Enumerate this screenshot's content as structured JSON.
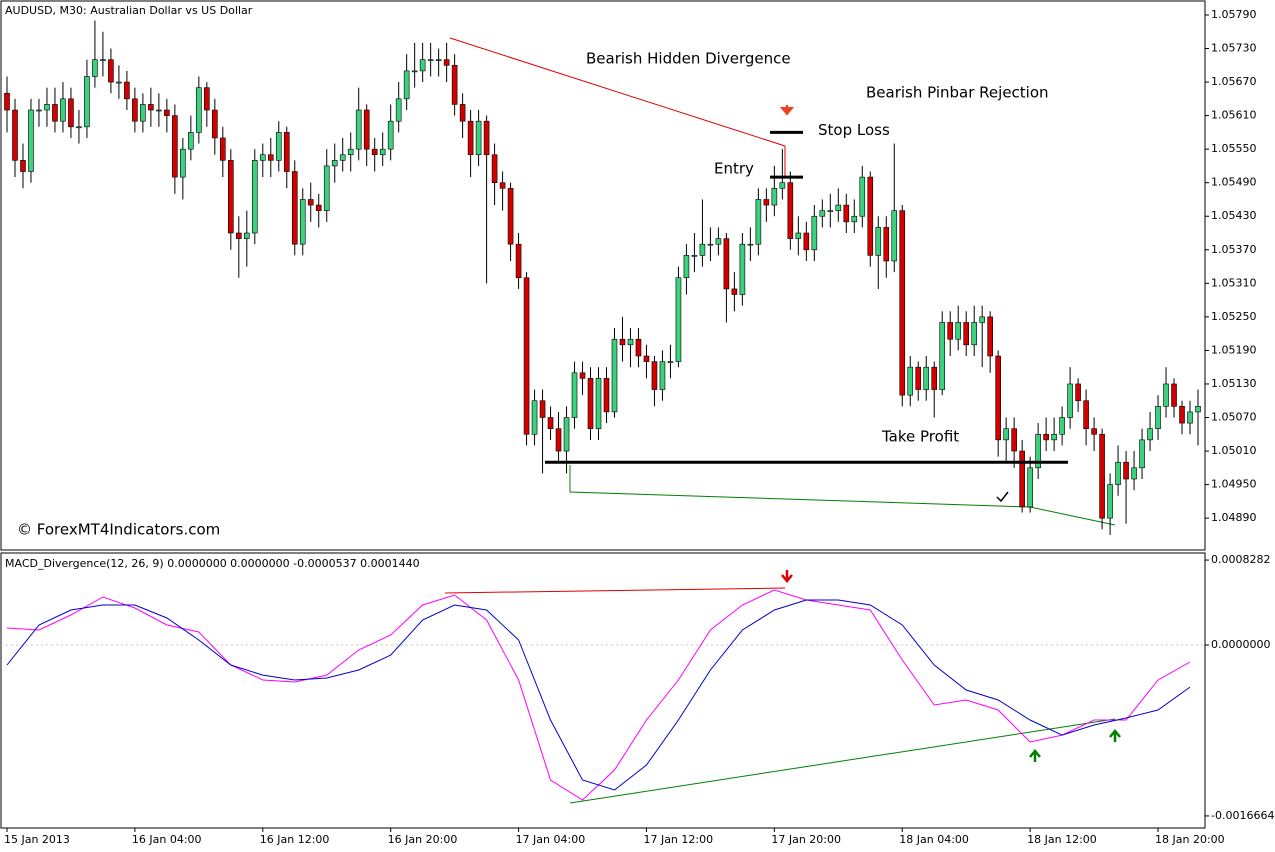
{
  "chart_data": [
    {
      "type": "candlestick",
      "title": "AUDUSD, M30:  Australian Dollar vs US Dollar",
      "up_color": "#3cd17c",
      "down_color": "#d40000",
      "open": [
        1.0565,
        1.0562,
        1.0553,
        1.0551,
        1.0562,
        1.0562,
        1.0563,
        1.056,
        1.0564,
        1.0559,
        1.0559,
        1.0568,
        1.0571,
        1.0571,
        1.0567,
        1.0567,
        1.0564,
        1.056,
        1.0563,
        1.0562,
        1.0562,
        1.0561,
        1.055,
        1.0555,
        1.0558,
        1.0566,
        1.0562,
        1.0557,
        1.0553,
        1.054,
        1.0539,
        1.054,
        1.0553,
        1.0554,
        1.0553,
        1.0558,
        1.0551,
        1.0538,
        1.0546,
        1.0545,
        1.0544,
        1.0552,
        1.0553,
        1.0554,
        1.0555,
        1.0562,
        1.0555,
        1.0554,
        1.0555,
        1.056,
        1.0564,
        1.0569,
        1.0569,
        1.0571,
        1.0571,
        1.0571,
        1.057,
        1.0563,
        1.056,
        1.0554,
        1.056,
        1.0554,
        1.0549,
        1.0548,
        1.0538,
        1.0532,
        1.0504,
        1.051,
        1.0507,
        1.0505,
        1.0501,
        1.0507,
        1.0515,
        1.0514,
        1.0505,
        1.0514,
        1.0508,
        1.0521,
        1.052,
        1.0521,
        1.0518,
        1.0517,
        1.0512,
        1.0517,
        1.0517,
        1.0532,
        1.0536,
        1.0536,
        1.0538,
        1.0538,
        1.0539,
        1.053,
        1.0529,
        1.0538,
        1.0538,
        1.0546,
        1.0545,
        1.0548,
        1.0549,
        1.0539,
        1.054,
        1.0537,
        1.0543,
        1.0544,
        1.0544,
        1.0545,
        1.0542,
        1.0543,
        1.055,
        1.0536,
        1.0541,
        1.0535,
        1.0544,
        1.0511,
        1.0516,
        1.0512,
        1.0516,
        1.0512,
        1.0524,
        1.0521,
        1.0524,
        1.052,
        1.0524,
        1.0525,
        1.0518,
        1.0503,
        1.0505,
        1.0501,
        1.0491,
        1.0498,
        1.0504,
        1.0503,
        1.0504,
        1.0507,
        1.0513,
        1.051,
        1.0505,
        1.0504,
        1.0489,
        1.0495,
        1.0499,
        1.0496,
        1.0498,
        1.0503,
        1.0505,
        1.0509,
        1.0513,
        1.0509,
        1.0506,
        1.0508
      ],
      "high": [
        1.0568,
        1.0564,
        1.0556,
        1.0564,
        1.0564,
        1.0566,
        1.0566,
        1.0567,
        1.0566,
        1.0562,
        1.0571,
        1.0578,
        1.0576,
        1.0573,
        1.057,
        1.0569,
        1.0566,
        1.0565,
        1.0566,
        1.0565,
        1.0564,
        1.0563,
        1.0557,
        1.0561,
        1.0568,
        1.0567,
        1.0564,
        1.0559,
        1.0555,
        1.0543,
        1.0544,
        1.0555,
        1.0556,
        1.0557,
        1.056,
        1.0559,
        1.0553,
        1.0548,
        1.0549,
        1.0547,
        1.0555,
        1.0556,
        1.0557,
        1.0558,
        1.0566,
        1.0563,
        1.0557,
        1.0558,
        1.0563,
        1.0567,
        1.0572,
        1.0574,
        1.0574,
        1.0574,
        1.0573,
        1.0574,
        1.0572,
        1.0565,
        1.0562,
        1.0562,
        1.0561,
        1.0556,
        1.0551,
        1.0549,
        1.054,
        1.0533,
        1.0512,
        1.0512,
        1.0509,
        1.0508,
        1.0509,
        1.0517,
        1.0517,
        1.0516,
        1.0516,
        1.0516,
        1.0523,
        1.0525,
        1.0523,
        1.0523,
        1.052,
        1.0518,
        1.0519,
        1.052,
        1.0534,
        1.0538,
        1.054,
        1.0546,
        1.0541,
        1.0541,
        1.054,
        1.0533,
        1.054,
        1.0541,
        1.0548,
        1.0548,
        1.0552,
        1.0555,
        1.0551,
        1.0543,
        1.0542,
        1.0545,
        1.0546,
        1.0547,
        1.0548,
        1.0547,
        1.0546,
        1.0552,
        1.0551,
        1.0543,
        1.0543,
        1.0556,
        1.0545,
        1.0518,
        1.0517,
        1.0518,
        1.0517,
        1.0526,
        1.0526,
        1.0527,
        1.0526,
        1.0527,
        1.0527,
        1.0526,
        1.0519,
        1.0507,
        1.0507,
        1.0503,
        1.05,
        1.0506,
        1.0507,
        1.0507,
        1.0509,
        1.0516,
        1.0514,
        1.0512,
        1.0507,
        1.0505,
        1.0497,
        1.0502,
        1.0501,
        1.0501,
        1.0505,
        1.0508,
        1.0511,
        1.0516,
        1.0514,
        1.051,
        1.051,
        1.0512
      ],
      "low": [
        1.0558,
        1.055,
        1.0548,
        1.0549,
        1.0559,
        1.0559,
        1.0558,
        1.0558,
        1.0557,
        1.0556,
        1.0557,
        1.0566,
        1.0568,
        1.0565,
        1.0564,
        1.0562,
        1.0558,
        1.0558,
        1.0559,
        1.0559,
        1.0558,
        1.0547,
        1.0546,
        1.0553,
        1.0556,
        1.0559,
        1.0554,
        1.055,
        1.0537,
        1.0532,
        1.0534,
        1.0538,
        1.055,
        1.055,
        1.0551,
        1.0548,
        1.0536,
        1.0536,
        1.0542,
        1.0541,
        1.0542,
        1.0549,
        1.0551,
        1.0551,
        1.0553,
        1.0552,
        1.0551,
        1.0552,
        1.0553,
        1.0558,
        1.0562,
        1.0566,
        1.0567,
        1.0568,
        1.0568,
        1.0567,
        1.0561,
        1.0557,
        1.055,
        1.0552,
        1.0531,
        1.0545,
        1.0544,
        1.0535,
        1.053,
        1.0502,
        1.0502,
        1.0497,
        1.0503,
        1.0499,
        1.0497,
        1.0505,
        1.0511,
        1.0503,
        1.0503,
        1.0506,
        1.0507,
        1.0517,
        1.0516,
        1.0516,
        1.0514,
        1.0509,
        1.051,
        1.0514,
        1.0516,
        1.0529,
        1.0533,
        1.0534,
        1.0535,
        1.0536,
        1.0524,
        1.0526,
        1.0527,
        1.0535,
        1.0536,
        1.0542,
        1.0543,
        1.0546,
        1.0537,
        1.0536,
        1.0535,
        1.0535,
        1.0541,
        1.0541,
        1.0542,
        1.054,
        1.054,
        1.0541,
        1.0534,
        1.053,
        1.0532,
        1.0533,
        1.0509,
        1.0509,
        1.051,
        1.051,
        1.0507,
        1.0511,
        1.0518,
        1.0519,
        1.0518,
        1.0518,
        1.0516,
        1.0515,
        1.05,
        1.0499,
        1.0498,
        1.049,
        1.049,
        1.0496,
        1.0501,
        1.0501,
        1.0502,
        1.0505,
        1.0508,
        1.0502,
        1.0501,
        1.0487,
        1.0486,
        1.0493,
        1.0488,
        1.0494,
        1.0496,
        1.0501,
        1.0503,
        1.0507,
        1.0507,
        1.0504,
        1.0504,
        1.0502
      ],
      "close": [
        1.0562,
        1.0553,
        1.0551,
        1.0562,
        1.0562,
        1.0563,
        1.056,
        1.0564,
        1.0559,
        1.0559,
        1.0568,
        1.0571,
        1.0571,
        1.0567,
        1.0567,
        1.0564,
        1.056,
        1.0563,
        1.0562,
        1.0562,
        1.0561,
        1.055,
        1.0555,
        1.0558,
        1.0566,
        1.0562,
        1.0557,
        1.0553,
        1.054,
        1.0539,
        1.054,
        1.0553,
        1.0554,
        1.0553,
        1.0558,
        1.0551,
        1.0538,
        1.0546,
        1.0545,
        1.0544,
        1.0552,
        1.0553,
        1.0554,
        1.0555,
        1.0562,
        1.0555,
        1.0554,
        1.0555,
        1.056,
        1.0564,
        1.0569,
        1.0569,
        1.0571,
        1.0571,
        1.0571,
        1.057,
        1.0563,
        1.056,
        1.0554,
        1.056,
        1.0554,
        1.0549,
        1.0548,
        1.0538,
        1.0532,
        1.0504,
        1.051,
        1.0507,
        1.0505,
        1.0501,
        1.0507,
        1.0515,
        1.0514,
        1.0505,
        1.0514,
        1.0508,
        1.0521,
        1.052,
        1.0521,
        1.0518,
        1.0517,
        1.0512,
        1.0517,
        1.0517,
        1.0532,
        1.0536,
        1.0536,
        1.0538,
        1.0538,
        1.0539,
        1.053,
        1.0529,
        1.0538,
        1.0538,
        1.0546,
        1.0545,
        1.0548,
        1.0549,
        1.0539,
        1.054,
        1.0537,
        1.0543,
        1.0544,
        1.0544,
        1.0545,
        1.0542,
        1.0543,
        1.055,
        1.0536,
        1.0541,
        1.0535,
        1.0544,
        1.0511,
        1.0516,
        1.0512,
        1.0516,
        1.0512,
        1.0524,
        1.0521,
        1.0524,
        1.052,
        1.0524,
        1.0525,
        1.0518,
        1.0503,
        1.0505,
        1.0501,
        1.0491,
        1.0498,
        1.0504,
        1.0503,
        1.0504,
        1.0507,
        1.0513,
        1.051,
        1.0505,
        1.0504,
        1.0489,
        1.0495,
        1.0499,
        1.0496,
        1.0498,
        1.0503,
        1.0505,
        1.0509,
        1.0513,
        1.0509,
        1.0506,
        1.0508,
        1.0509
      ],
      "xlim": [
        -0.75,
        149.875
      ],
      "ylim": [
        1.04833,
        1.05815
      ],
      "yticks": [
        {
          "value": 1.0579,
          "label": "1.05790"
        },
        {
          "value": 1.0573,
          "label": "1.05730"
        },
        {
          "value": 1.0567,
          "label": "1.05670"
        },
        {
          "value": 1.0561,
          "label": "1.05610"
        },
        {
          "value": 1.0555,
          "label": "1.05550"
        },
        {
          "value": 1.0549,
          "label": "1.05490"
        },
        {
          "value": 1.0543,
          "label": "1.05430"
        },
        {
          "value": 1.0537,
          "label": "1.05370"
        },
        {
          "value": 1.0531,
          "label": "1.05310"
        },
        {
          "value": 1.0525,
          "label": "1.05250"
        },
        {
          "value": 1.0519,
          "label": "1.05190"
        },
        {
          "value": 1.0513,
          "label": "1.05130"
        },
        {
          "value": 1.0507,
          "label": "1.05070"
        },
        {
          "value": 1.0501,
          "label": "1.05010"
        },
        {
          "value": 1.0495,
          "label": "1.04950"
        },
        {
          "value": 1.0489,
          "label": "1.04890"
        }
      ],
      "xticks": [
        {
          "value": 0,
          "label": "15 Jan 2013"
        },
        {
          "value": 16,
          "label": "16 Jan 04:00"
        },
        {
          "value": 32,
          "label": "16 Jan 12:00"
        },
        {
          "value": 48,
          "label": "16 Jan 20:00"
        },
        {
          "value": 64,
          "label": "17 Jan 04:00"
        },
        {
          "value": 80,
          "label": "17 Jan 12:00"
        },
        {
          "value": 96,
          "label": "17 Jan 20:00"
        },
        {
          "value": 112,
          "label": "18 Jan 04:00"
        },
        {
          "value": 128,
          "label": "18 Jan 12:00"
        },
        {
          "value": 144,
          "label": "18 Jan 20:00"
        }
      ],
      "levels": [
        {
          "text": "Stop Loss",
          "value": 1.0558
        },
        {
          "text": "Entry",
          "value": 1.055
        },
        {
          "text": "Take Profit",
          "value": 1.0499
        }
      ],
      "annotations": [
        "Bearish Hidden Divergence",
        "Bearish Pinbar Rejection",
        "© ForexMT4Indicators.com"
      ]
    },
    {
      "type": "line",
      "title": "MACD_Divergence(12, 26, 9) 0.0000000 0.0000000 -0.0000537 0.0001440",
      "x": [
        0,
        4,
        8,
        12,
        16,
        20,
        24,
        28,
        32,
        36,
        40,
        44,
        48,
        52,
        56,
        60,
        64,
        68,
        72,
        76,
        80,
        84,
        88,
        92,
        96,
        100,
        104,
        108,
        112,
        116,
        120,
        124,
        128,
        132,
        136,
        140,
        144,
        148
      ],
      "series": [
        {
          "color": "#ff00ff",
          "values": [
            0.000166,
            0.000146,
            0.000293,
            0.000468,
            0.000361,
            0.000195,
            0.000127,
            -0.000195,
            -0.000341,
            -0.000361,
            -0.000293,
            -4.9e-05,
            9.8e-05,
            0.00039,
            0.000488,
            0.000244,
            -0.000341,
            -0.001316,
            -0.001511,
            -0.001219,
            -0.000731,
            -0.000341,
            0.000146,
            0.00039,
            0.000536,
            0.000439,
            0.00039,
            0.000341,
            -0.000146,
            -0.000585,
            -0.000536,
            -0.000634,
            -0.000946,
            -0.000878,
            -0.000731,
            -0.000731,
            -0.000341,
            -0.000166
          ]
        },
        {
          "color": "#0000cd",
          "values": [
            -0.000195,
            0.000195,
            0.000341,
            0.00039,
            0.00039,
            0.000263,
            4.9e-05,
            -0.000195,
            -0.000293,
            -0.000341,
            -0.000322,
            -0.000244,
            -9.8e-05,
            0.000244,
            0.00039,
            0.000341,
            4.9e-05,
            -0.000731,
            -0.001316,
            -0.001414,
            -0.00117,
            -0.000731,
            -0.000244,
            0.000146,
            0.000341,
            0.000439,
            0.000439,
            0.00039,
            0.000195,
            -0.000195,
            -0.000439,
            -0.000536,
            -0.000731,
            -0.000878,
            -0.00078,
            -0.000712,
            -0.000634,
            -0.00041
          ]
        }
      ],
      "y2lim": [
        -0.001784,
        0.000897
      ],
      "y2ticks": [
        {
          "value": 0.0008282,
          "label": "0.0008282"
        },
        {
          "value": 0,
          "label": "0.0000000"
        },
        {
          "value": -0.0016664,
          "label": "-0.0016664"
        }
      ],
      "zero_line": true
    }
  ]
}
